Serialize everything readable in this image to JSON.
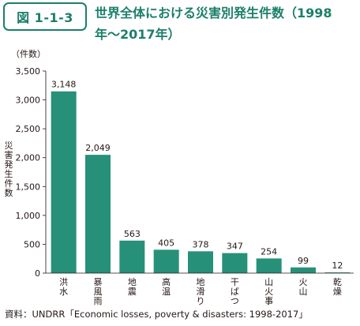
{
  "header": {
    "figure_number": "図 1-1-3",
    "title": "世界全体における災害別発生件数（1998年〜2017年）"
  },
  "chart_data": {
    "type": "bar",
    "categories": [
      "洪水",
      "暴風雨",
      "地震",
      "高温",
      "地滑り",
      "干ばつ",
      "山火事",
      "火山",
      "乾燥"
    ],
    "values": [
      3148,
      2049,
      563,
      405,
      378,
      347,
      254,
      99,
      12
    ],
    "value_labels": [
      "3,148",
      "2,049",
      "563",
      "405",
      "378",
      "347",
      "254",
      "99",
      "12"
    ],
    "title": "世界全体における災害別発生件数（1998年〜2017年）",
    "ylabel": "災害発生件数",
    "unit_label": "（件数）",
    "ylim": [
      0,
      3500
    ],
    "yticks": [
      0,
      500,
      1000,
      1500,
      2000,
      2500,
      3000,
      3500
    ],
    "ytick_labels": [
      "0",
      "500",
      "1,000",
      "1,500",
      "2,000",
      "2,500",
      "3,000",
      "3,500"
    ],
    "grid": false,
    "legend": "none",
    "bar_color": "#279079"
  },
  "footer": {
    "source": "資料：UNDRR「Economic losses, poverty & disasters: 1998-2017」"
  }
}
